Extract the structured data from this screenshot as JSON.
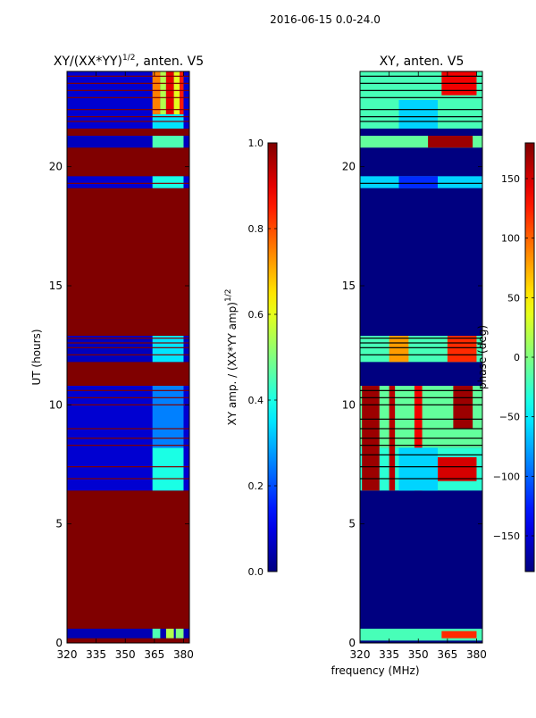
{
  "chart_data": {
    "suptitle": "2016-06-15 0.0-24.0",
    "xlabel": "frequency (MHz)",
    "x_range": [
      320,
      383
    ],
    "x_ticks": [
      320,
      335,
      350,
      365,
      380
    ],
    "y_range": [
      0,
      24
    ],
    "y_ticks": [
      0,
      5,
      10,
      15,
      20
    ],
    "panels": [
      {
        "type": "heatmap",
        "title": "XY/(XX*YY)",
        "title_exp": "1/2",
        "title_suffix": ", anten. V5",
        "ylabel": "UT (hours)",
        "colorbar": {
          "label": "XY amp. / (XX*YY amp)",
          "label_exp": "1/2",
          "range": [
            0.0,
            1.0
          ],
          "ticks": [
            "0.0",
            "0.2",
            "0.4",
            "0.6",
            "0.8",
            "1.0"
          ],
          "colormap": "jet"
        },
        "default_value": 1.0,
        "bands": [
          {
            "t0": 0.0,
            "t1": 0.2,
            "value": 1.0
          },
          {
            "t0": 0.2,
            "t1": 0.6,
            "value": 0.05
          },
          {
            "t0": 6.4,
            "t1": 10.8,
            "value": 0.08
          },
          {
            "t0": 11.8,
            "t1": 12.9,
            "value": 0.06
          },
          {
            "t0": 19.1,
            "t1": 19.6,
            "value": 0.08
          },
          {
            "t0": 20.8,
            "t1": 21.3,
            "value": 0.06
          },
          {
            "t0": 21.6,
            "t1": 24.0,
            "value": 0.08
          }
        ],
        "flagged_lines": [
          6.9,
          7.4,
          8.3,
          8.6,
          9.0,
          10.0,
          10.3,
          10.6,
          12.1,
          12.4,
          12.6,
          12.8,
          19.3,
          21.9,
          22.1,
          22.4,
          22.9,
          23.2,
          23.5,
          23.8
        ],
        "hot_spans": [
          {
            "f0": 364,
            "f1": 368,
            "t0": 0.2,
            "t1": 0.6,
            "value": 0.45
          },
          {
            "f0": 371,
            "f1": 375,
            "t0": 0.2,
            "t1": 0.6,
            "value": 0.55
          },
          {
            "f0": 376,
            "f1": 380,
            "t0": 0.2,
            "t1": 0.6,
            "value": 0.5
          },
          {
            "f0": 364,
            "f1": 380,
            "t0": 6.4,
            "t1": 8.2,
            "value": 0.4
          },
          {
            "f0": 364,
            "f1": 380,
            "t0": 8.2,
            "t1": 10.8,
            "value": 0.25
          },
          {
            "f0": 364,
            "f1": 380,
            "t0": 11.8,
            "t1": 12.9,
            "value": 0.35
          },
          {
            "f0": 364,
            "f1": 380,
            "t0": 19.1,
            "t1": 19.6,
            "value": 0.4
          },
          {
            "f0": 364,
            "f1": 380,
            "t0": 20.8,
            "t1": 21.3,
            "value": 0.45
          },
          {
            "f0": 364,
            "f1": 380,
            "t0": 21.6,
            "t1": 22.2,
            "value": 0.35
          },
          {
            "f0": 364,
            "f1": 368,
            "t0": 22.2,
            "t1": 24.0,
            "value": 0.75
          },
          {
            "f0": 368,
            "f1": 371,
            "t0": 22.2,
            "t1": 24.0,
            "value": 0.55
          },
          {
            "f0": 371,
            "f1": 375,
            "t0": 22.2,
            "t1": 24.0,
            "value": 0.9
          },
          {
            "f0": 375,
            "f1": 378,
            "t0": 22.2,
            "t1": 24.0,
            "value": 0.6
          },
          {
            "f0": 378,
            "f1": 380,
            "t0": 22.2,
            "t1": 24.0,
            "value": 0.85
          }
        ]
      },
      {
        "type": "heatmap",
        "title": "XY, anten. V5",
        "ylabel": "",
        "colorbar": {
          "label": "phase (deg)",
          "range": [
            -180,
            180
          ],
          "ticks": [
            "−150",
            "−100",
            "−50",
            "0",
            "50",
            "100",
            "150"
          ],
          "tick_values": [
            -150,
            -100,
            -50,
            0,
            50,
            100,
            150
          ],
          "colormap": "jet"
        },
        "default_value": -180,
        "bands": [
          {
            "t0": 0.0,
            "t1": 0.1,
            "value": -180
          },
          {
            "t0": 0.1,
            "t1": 0.6,
            "value": -20
          },
          {
            "t0": 6.4,
            "t1": 8.2,
            "value": -30
          },
          {
            "t0": 8.2,
            "t1": 10.8,
            "value": -10
          },
          {
            "t0": 11.8,
            "t1": 12.9,
            "value": -20
          },
          {
            "t0": 19.1,
            "t1": 19.6,
            "value": -60
          },
          {
            "t0": 20.8,
            "t1": 21.3,
            "value": -10
          },
          {
            "t0": 21.6,
            "t1": 24.0,
            "value": -20
          }
        ],
        "flagged_lines": [
          6.9,
          7.4,
          7.9,
          8.3,
          8.6,
          9.0,
          9.4,
          10.0,
          10.3,
          10.6,
          12.1,
          12.4,
          12.6,
          12.8,
          19.3,
          21.9,
          22.1,
          22.4,
          22.9,
          23.2,
          23.5,
          23.8
        ],
        "hot_spans": [
          {
            "f0": 321,
            "f1": 330,
            "t0": 6.4,
            "t1": 10.8,
            "value": 170
          },
          {
            "f0": 335,
            "f1": 338,
            "t0": 6.4,
            "t1": 10.8,
            "value": 160
          },
          {
            "f0": 348,
            "f1": 352,
            "t0": 6.4,
            "t1": 10.8,
            "value": 140
          },
          {
            "f0": 368,
            "f1": 378,
            "t0": 9.0,
            "t1": 10.8,
            "value": 170
          },
          {
            "f0": 360,
            "f1": 380,
            "t0": 6.8,
            "t1": 7.8,
            "value": 150
          },
          {
            "f0": 340,
            "f1": 360,
            "t0": 6.4,
            "t1": 8.2,
            "value": -60
          },
          {
            "f0": 365,
            "f1": 380,
            "t0": 11.8,
            "t1": 12.9,
            "value": 120
          },
          {
            "f0": 335,
            "f1": 345,
            "t0": 11.8,
            "t1": 12.9,
            "value": 80
          },
          {
            "f0": 355,
            "f1": 378,
            "t0": 20.8,
            "t1": 21.3,
            "value": 170
          },
          {
            "f0": 340,
            "f1": 360,
            "t0": 19.1,
            "t1": 19.6,
            "value": -120
          },
          {
            "f0": 362,
            "f1": 380,
            "t0": 23.0,
            "t1": 24.0,
            "value": 140
          },
          {
            "f0": 340,
            "f1": 360,
            "t0": 21.6,
            "t1": 22.8,
            "value": -60
          },
          {
            "f0": 362,
            "f1": 380,
            "t0": 0.2,
            "t1": 0.5,
            "value": 120
          }
        ]
      }
    ]
  }
}
